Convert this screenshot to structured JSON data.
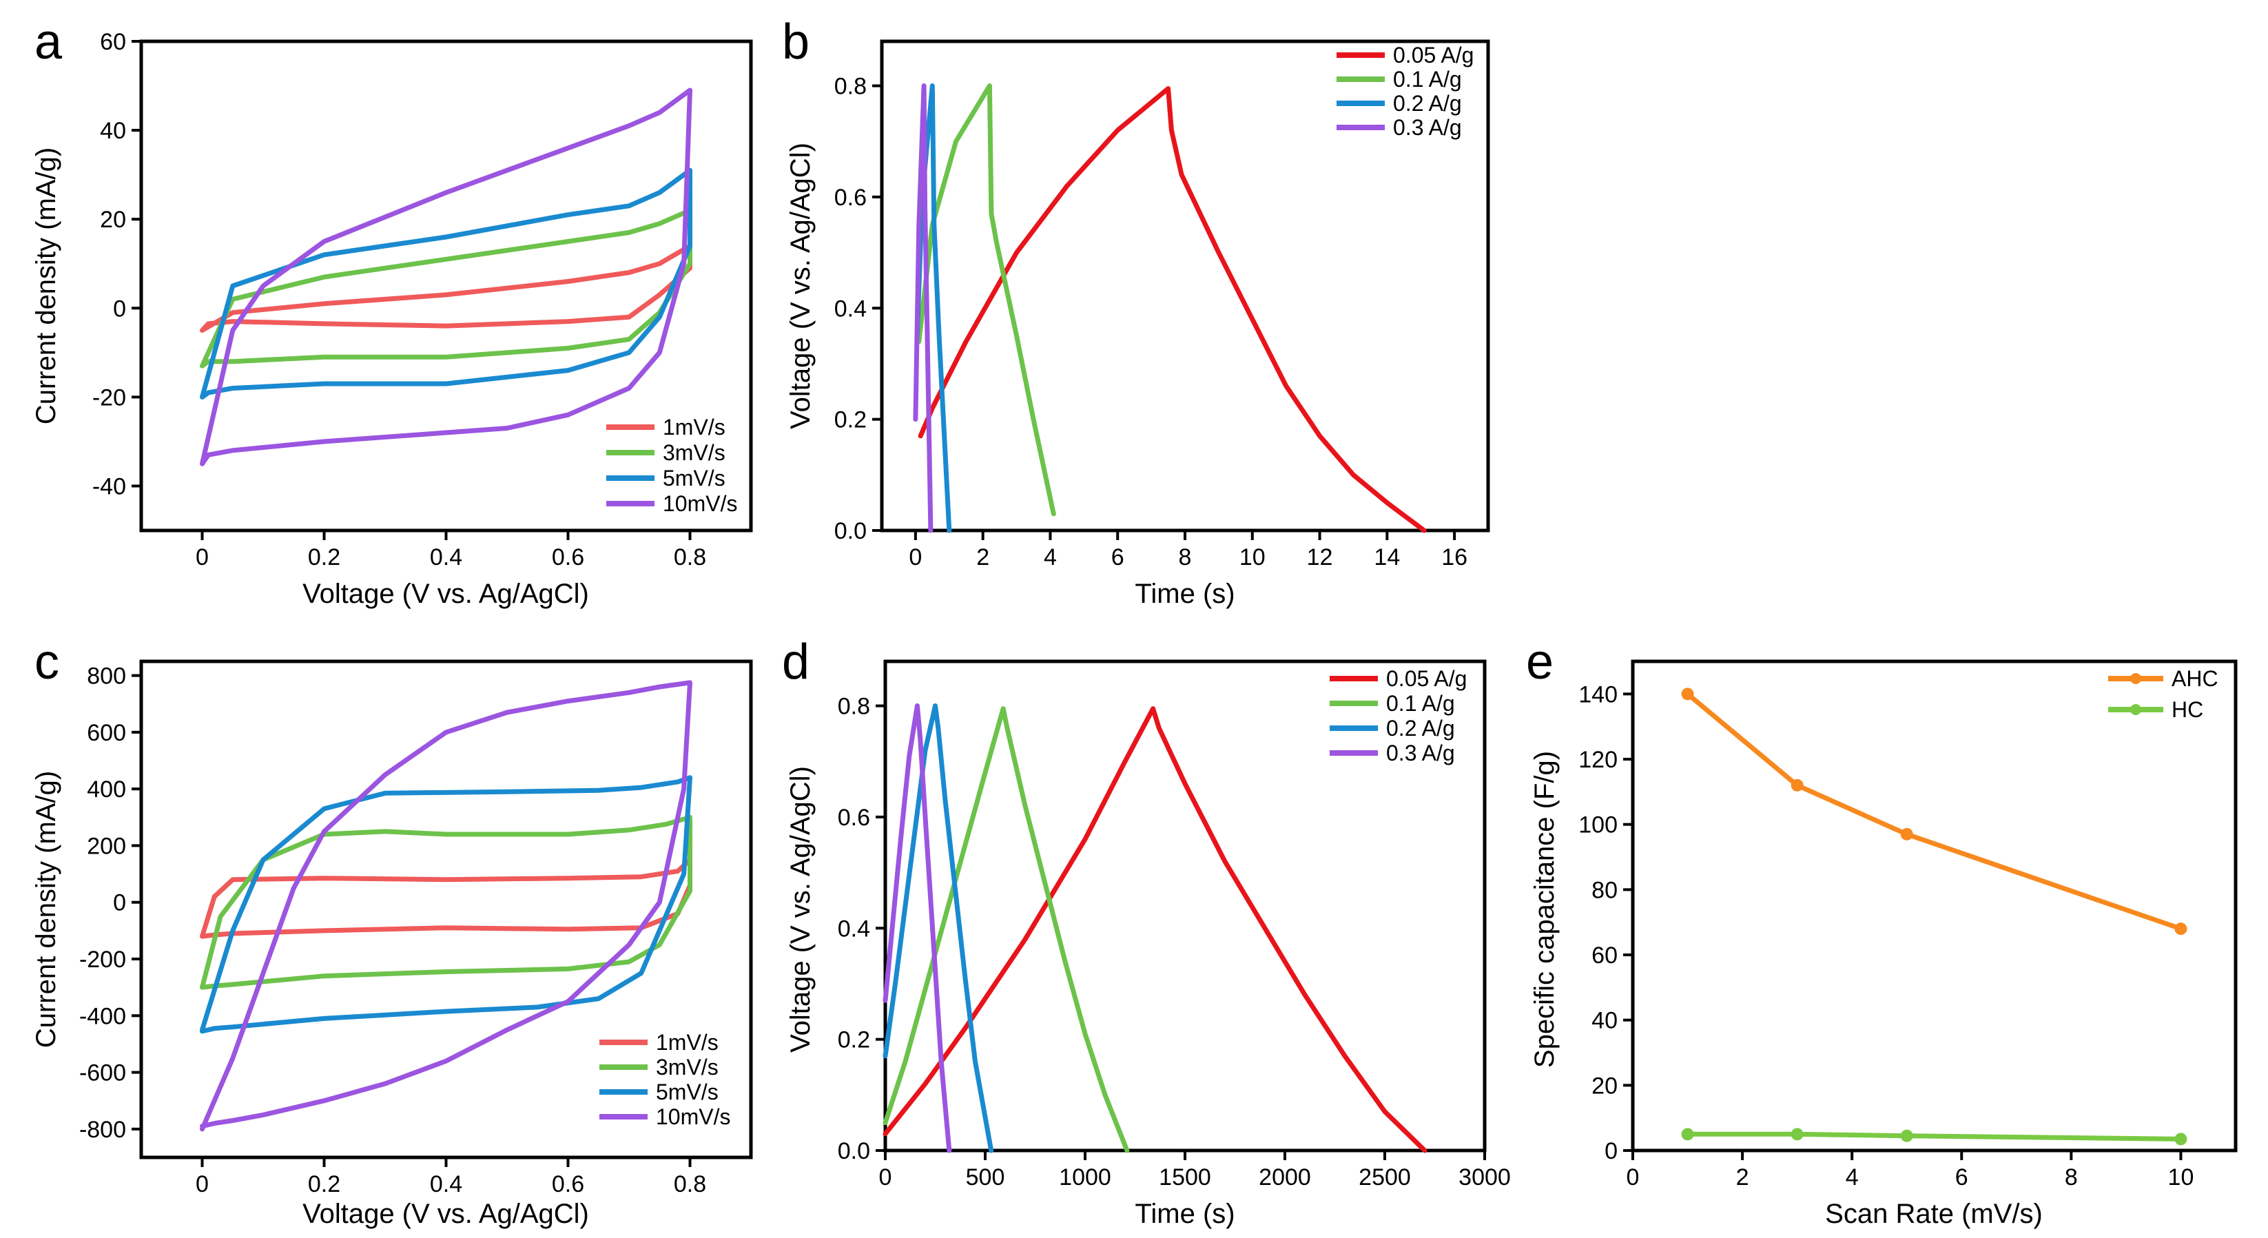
{
  "chart_data": [
    {
      "id": "a",
      "type": "line",
      "panel_label": "a",
      "xlabel": "Voltage (V vs. Ag/AgCl)",
      "ylabel": "Current density (mA/g)",
      "xlim": [
        -0.1,
        0.9
      ],
      "ylim": [
        -50,
        60
      ],
      "xticks": [
        0,
        0.2,
        0.4,
        0.6,
        0.8
      ],
      "xticklabels": [
        "0",
        "0.2",
        "0.4",
        "0.6",
        "0.8"
      ],
      "yticks": [
        -40,
        -20,
        0,
        20,
        40,
        60
      ],
      "yticklabels": [
        "-40",
        "-20",
        "0",
        "20",
        "40",
        "60"
      ],
      "legend_position": "bottom-right",
      "series": [
        {
          "name": "1mV/s",
          "color": "#f05a5a",
          "x": [
            0,
            0.05,
            0.2,
            0.4,
            0.6,
            0.7,
            0.75,
            0.8,
            0.8,
            0.75,
            0.7,
            0.6,
            0.4,
            0.2,
            0.05,
            0.01,
            0
          ],
          "y": [
            -5,
            -1,
            1,
            3,
            6,
            8,
            10,
            14,
            9,
            3,
            -2,
            -3,
            -4,
            -3.5,
            -3,
            -3.5,
            -5
          ]
        },
        {
          "name": "3mV/s",
          "color": "#6cc24a",
          "x": [
            0,
            0.05,
            0.2,
            0.4,
            0.6,
            0.7,
            0.75,
            0.8,
            0.8,
            0.75,
            0.7,
            0.6,
            0.4,
            0.2,
            0.05,
            0.01,
            0
          ],
          "y": [
            -13,
            2,
            7,
            11,
            15,
            17,
            19,
            22,
            10,
            -1,
            -7,
            -9,
            -11,
            -11,
            -12,
            -12,
            -13
          ]
        },
        {
          "name": "5mV/s",
          "color": "#1a8ad0",
          "x": [
            0,
            0.05,
            0.2,
            0.4,
            0.6,
            0.7,
            0.75,
            0.8,
            0.8,
            0.75,
            0.7,
            0.6,
            0.4,
            0.2,
            0.05,
            0.01,
            0
          ],
          "y": [
            -20,
            5,
            12,
            16,
            21,
            23,
            26,
            31,
            14,
            -2,
            -10,
            -14,
            -17,
            -17,
            -18,
            -19,
            -20
          ]
        },
        {
          "name": "10mV/s",
          "color": "#9b55e0",
          "x": [
            0,
            0.05,
            0.1,
            0.2,
            0.4,
            0.6,
            0.7,
            0.75,
            0.8,
            0.79,
            0.75,
            0.7,
            0.6,
            0.5,
            0.4,
            0.2,
            0.05,
            0.01,
            0
          ],
          "y": [
            -35,
            -5,
            5,
            15,
            26,
            36,
            41,
            44,
            49,
            10,
            -10,
            -18,
            -24,
            -27,
            -28,
            -30,
            -32,
            -33,
            -35
          ]
        }
      ]
    },
    {
      "id": "b",
      "type": "line",
      "panel_label": "b",
      "xlabel": "Time (s)",
      "ylabel": "Voltage (V vs. Ag/AgCl)",
      "xlim": [
        -1,
        17
      ],
      "ylim": [
        0,
        0.88
      ],
      "xticks": [
        0,
        2,
        4,
        6,
        8,
        10,
        12,
        14,
        16
      ],
      "xticklabels": [
        "0",
        "2",
        "4",
        "6",
        "8",
        "10",
        "12",
        "14",
        "16"
      ],
      "yticks": [
        0,
        0.2,
        0.4,
        0.6,
        0.8
      ],
      "yticklabels": [
        "0.0",
        "0.2",
        "0.4",
        "0.6",
        "0.8"
      ],
      "legend_position": "top-right",
      "series": [
        {
          "name": "0.05 A/g",
          "color": "#e8141b",
          "x": [
            0.15,
            0.5,
            1.5,
            3,
            4.5,
            6,
            7.5,
            7.6,
            7.9,
            9,
            10,
            11,
            12,
            13,
            14,
            15.1
          ],
          "y": [
            0.17,
            0.22,
            0.34,
            0.5,
            0.62,
            0.72,
            0.795,
            0.72,
            0.64,
            0.5,
            0.38,
            0.26,
            0.17,
            0.1,
            0.05,
            0.0
          ]
        },
        {
          "name": "0.1 A/g",
          "color": "#6cc24a",
          "x": [
            0.1,
            0.5,
            1.2,
            2.2,
            2.25,
            2.4,
            3,
            3.5,
            4.1
          ],
          "y": [
            0.34,
            0.55,
            0.7,
            0.8,
            0.57,
            0.52,
            0.35,
            0.2,
            0.03
          ]
        },
        {
          "name": "0.2 A/g",
          "color": "#1a8ad0",
          "x": [
            0.05,
            0.2,
            0.5,
            0.55,
            0.7,
            1.0
          ],
          "y": [
            0.35,
            0.6,
            0.8,
            0.55,
            0.35,
            0.0
          ]
        },
        {
          "name": "0.3 A/g",
          "color": "#9b55e0",
          "x": [
            0.0,
            0.1,
            0.25,
            0.28,
            0.35,
            0.45
          ],
          "y": [
            0.2,
            0.55,
            0.8,
            0.58,
            0.35,
            0.0
          ]
        }
      ]
    },
    {
      "id": "c",
      "type": "line",
      "panel_label": "c",
      "xlabel": "Voltage (V vs. Ag/AgCl)",
      "ylabel": "Current density (mA/g)",
      "xlim": [
        -0.1,
        0.9
      ],
      "ylim": [
        -900,
        850
      ],
      "xticks": [
        0,
        0.2,
        0.4,
        0.6,
        0.8
      ],
      "xticklabels": [
        "0",
        "0.2",
        "0.4",
        "0.6",
        "0.8"
      ],
      "yticks": [
        -800,
        -600,
        -400,
        -200,
        0,
        200,
        400,
        600,
        800
      ],
      "yticklabels": [
        "-800",
        "-600",
        "-400",
        "-200",
        "0",
        "200",
        "400",
        "600",
        "800"
      ],
      "legend_position": "bottom-right",
      "series": [
        {
          "name": "1mV/s",
          "color": "#f05a5a",
          "x": [
            0,
            0.02,
            0.05,
            0.2,
            0.4,
            0.6,
            0.72,
            0.78,
            0.8,
            0.8,
            0.78,
            0.72,
            0.6,
            0.4,
            0.2,
            0.05,
            0.02,
            0
          ],
          "y": [
            -120,
            20,
            80,
            85,
            80,
            85,
            90,
            110,
            150,
            60,
            -40,
            -90,
            -95,
            -90,
            -100,
            -110,
            -115,
            -120
          ]
        },
        {
          "name": "3mV/s",
          "color": "#6cc24a",
          "x": [
            0,
            0.03,
            0.1,
            0.2,
            0.3,
            0.4,
            0.6,
            0.7,
            0.76,
            0.8,
            0.8,
            0.75,
            0.7,
            0.6,
            0.4,
            0.2,
            0.05,
            0.02,
            0
          ],
          "y": [
            -300,
            -50,
            150,
            240,
            250,
            240,
            240,
            255,
            275,
            300,
            40,
            -150,
            -210,
            -235,
            -245,
            -260,
            -290,
            -295,
            -300
          ]
        },
        {
          "name": "5mV/s",
          "color": "#1a8ad0",
          "x": [
            0,
            0.05,
            0.1,
            0.2,
            0.3,
            0.5,
            0.65,
            0.72,
            0.78,
            0.8,
            0.79,
            0.72,
            0.65,
            0.55,
            0.4,
            0.2,
            0.05,
            0.02,
            0
          ],
          "y": [
            -450,
            -100,
            150,
            330,
            385,
            390,
            395,
            405,
            425,
            440,
            100,
            -250,
            -340,
            -370,
            -385,
            -410,
            -440,
            -445,
            -455
          ]
        },
        {
          "name": "10mV/s",
          "color": "#9b55e0",
          "x": [
            0,
            0.05,
            0.1,
            0.15,
            0.2,
            0.3,
            0.4,
            0.5,
            0.6,
            0.7,
            0.75,
            0.8,
            0.79,
            0.75,
            0.7,
            0.6,
            0.5,
            0.4,
            0.3,
            0.2,
            0.1,
            0.05,
            0.02,
            0
          ],
          "y": [
            -800,
            -550,
            -250,
            50,
            250,
            450,
            600,
            670,
            710,
            740,
            760,
            775,
            400,
            0,
            -150,
            -350,
            -450,
            -560,
            -640,
            -700,
            -750,
            -770,
            -780,
            -790
          ]
        }
      ]
    },
    {
      "id": "d",
      "type": "line",
      "panel_label": "d",
      "xlabel": "Time (s)",
      "ylabel": "Voltage (V vs. Ag/AgCl)",
      "xlim": [
        0,
        3000
      ],
      "ylim": [
        0,
        0.88
      ],
      "xticks": [
        0,
        500,
        1000,
        1500,
        2000,
        2500,
        3000
      ],
      "xticklabels": [
        "0",
        "500",
        "1000",
        "1500",
        "2000",
        "2500",
        "3000"
      ],
      "yticks": [
        0,
        0.2,
        0.4,
        0.6,
        0.8
      ],
      "yticklabels": [
        "0.0",
        "0.2",
        "0.4",
        "0.6",
        "0.8"
      ],
      "legend_position": "top-right",
      "series": [
        {
          "name": "0.05 A/g",
          "color": "#e8141b",
          "x": [
            0,
            200,
            400,
            700,
            1000,
            1200,
            1340,
            1370,
            1500,
            1700,
            1900,
            2100,
            2300,
            2500,
            2700
          ],
          "y": [
            0.03,
            0.12,
            0.22,
            0.38,
            0.56,
            0.7,
            0.795,
            0.76,
            0.66,
            0.52,
            0.4,
            0.28,
            0.17,
            0.07,
            0.0
          ]
        },
        {
          "name": "0.1 A/g",
          "color": "#6cc24a",
          "x": [
            0,
            100,
            200,
            300,
            400,
            500,
            590,
            610,
            700,
            800,
            900,
            1000,
            1100,
            1210
          ],
          "y": [
            0.05,
            0.16,
            0.29,
            0.42,
            0.55,
            0.68,
            0.795,
            0.76,
            0.62,
            0.48,
            0.34,
            0.21,
            0.1,
            0.0
          ]
        },
        {
          "name": "0.2 A/g",
          "color": "#1a8ad0",
          "x": [
            0,
            50,
            100,
            150,
            200,
            250,
            265,
            300,
            350,
            400,
            450,
            530
          ],
          "y": [
            0.17,
            0.3,
            0.44,
            0.58,
            0.72,
            0.8,
            0.76,
            0.63,
            0.47,
            0.31,
            0.16,
            0.0
          ]
        },
        {
          "name": "0.3 A/g",
          "color": "#9b55e0",
          "x": [
            0,
            40,
            80,
            120,
            160,
            175,
            200,
            240,
            280,
            320
          ],
          "y": [
            0.27,
            0.42,
            0.57,
            0.71,
            0.8,
            0.74,
            0.6,
            0.38,
            0.16,
            0.0
          ]
        }
      ]
    },
    {
      "id": "e",
      "type": "line",
      "panel_label": "e",
      "xlabel": "Scan Rate (mV/s)",
      "ylabel": "Specific capacitance (F/g)",
      "xlim": [
        0,
        11
      ],
      "ylim": [
        0,
        150
      ],
      "xticks": [
        0,
        2,
        4,
        6,
        8,
        10
      ],
      "xticklabels": [
        "0",
        "2",
        "4",
        "6",
        "8",
        "10"
      ],
      "yticks": [
        0,
        20,
        40,
        60,
        80,
        100,
        120,
        140
      ],
      "yticklabels": [
        "0",
        "20",
        "40",
        "60",
        "80",
        "100",
        "120",
        "140"
      ],
      "legend_position": "top-right",
      "markers": true,
      "series": [
        {
          "name": "AHC",
          "color": "#f7891f",
          "x": [
            1,
            3,
            5,
            10
          ],
          "y": [
            140,
            112,
            97,
            68
          ]
        },
        {
          "name": "HC",
          "color": "#7ac943",
          "x": [
            1,
            3,
            5,
            10
          ],
          "y": [
            5,
            5,
            4.5,
            3.5
          ]
        }
      ]
    }
  ]
}
